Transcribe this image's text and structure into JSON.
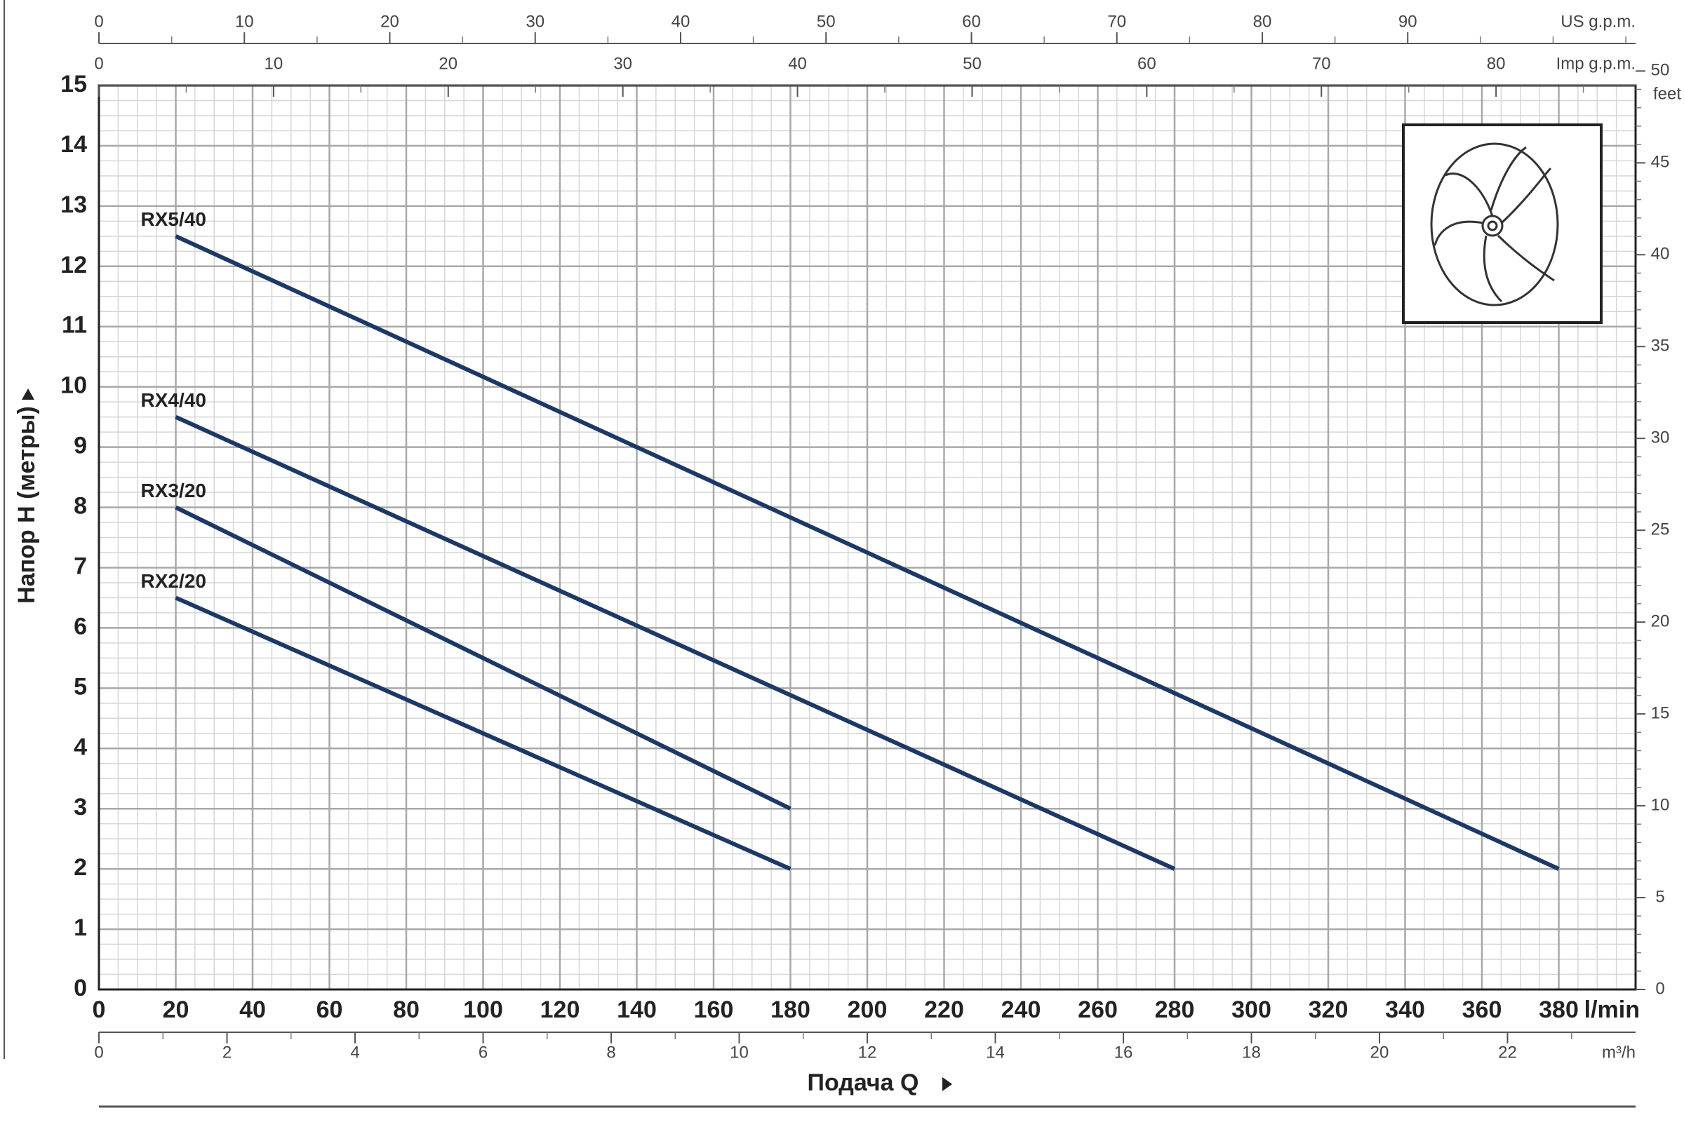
{
  "chart_data": {
    "type": "line",
    "y_label": "Напор H (метры)",
    "x_label": "Подача Q",
    "x_unit": "l/min",
    "xlim": [
      0,
      400
    ],
    "xticks": [
      0,
      20,
      40,
      60,
      80,
      100,
      120,
      140,
      160,
      180,
      200,
      220,
      240,
      260,
      280,
      300,
      320,
      340,
      360,
      380
    ],
    "ylim": [
      0,
      15
    ],
    "yticks": [
      0,
      1,
      2,
      3,
      4,
      5,
      6,
      7,
      8,
      9,
      10,
      11,
      12,
      13,
      14,
      15
    ],
    "grid": true,
    "secondary_axes": [
      {
        "position": "top",
        "label": "US g.p.m.",
        "lim": [
          0,
          105.67
        ],
        "ticks": [
          0,
          10,
          20,
          30,
          40,
          50,
          60,
          70,
          80,
          90
        ]
      },
      {
        "position": "top",
        "label": "Imp g.p.m.",
        "lim": [
          0,
          87.99
        ],
        "ticks": [
          0,
          10,
          20,
          30,
          40,
          50,
          60,
          70,
          80
        ]
      },
      {
        "position": "bottom",
        "label": "m³/h",
        "lim": [
          0,
          24
        ],
        "ticks": [
          0,
          2,
          4,
          6,
          8,
          10,
          12,
          14,
          16,
          18,
          20,
          22
        ]
      },
      {
        "position": "right",
        "label": "feet",
        "lim": [
          0,
          49.21
        ],
        "ticks": [
          0,
          5,
          10,
          15,
          20,
          25,
          30,
          35,
          40,
          45,
          50
        ]
      }
    ],
    "series": [
      {
        "name": "RX5/40",
        "color": "#1c3966",
        "x": [
          20,
          380
        ],
        "values": [
          12.5,
          2
        ]
      },
      {
        "name": "RX4/40",
        "color": "#1c3966",
        "x": [
          20,
          280
        ],
        "values": [
          9.5,
          2
        ]
      },
      {
        "name": "RX3/20",
        "color": "#1c3966",
        "x": [
          20,
          180
        ],
        "values": [
          8,
          3
        ]
      },
      {
        "name": "RX2/20",
        "color": "#1c3966",
        "x": [
          20,
          180
        ],
        "values": [
          6.5,
          2
        ]
      }
    ]
  }
}
